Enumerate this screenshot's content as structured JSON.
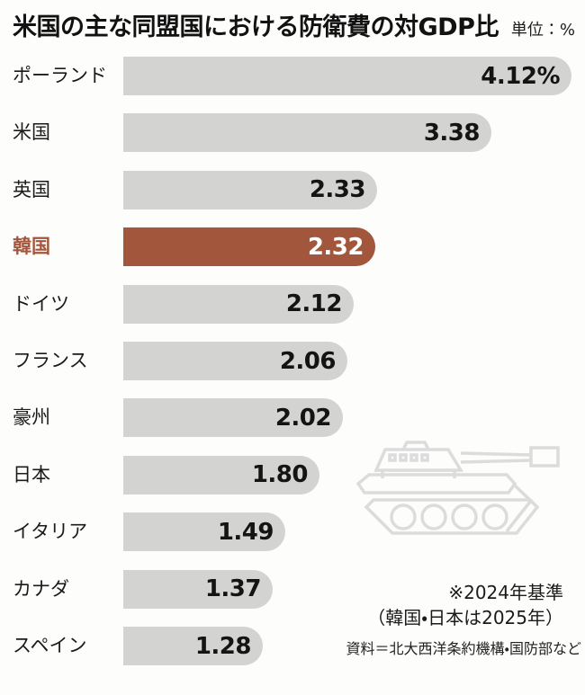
{
  "title": "米国の主な同盟国における防衛費の対GDP比",
  "unit_label": "単位：%",
  "notes": {
    "line1": "※2024年基準",
    "line2": "（韓国・日本は2025年）",
    "source": "資料＝北大西洋条約機構・国防部など"
  },
  "icons": {
    "tank": "tank-line-art-icon"
  },
  "colors": {
    "background": "#fdfdfc",
    "bar_default": "#d3d3d2",
    "bar_highlight": "#a2563c",
    "value_default": "#141414",
    "value_highlight": "#ffffff",
    "label_default": "#1b1b1b",
    "label_highlight": "#a2563c",
    "tank_stroke": "#dcdcdc"
  },
  "chart_data": {
    "type": "bar",
    "orientation": "horizontal",
    "title": "米国の主な同盟国における防衛費の対GDP比",
    "unit": "%",
    "categories": [
      "ポーランド",
      "米国",
      "英国",
      "韓国",
      "ドイツ",
      "フランス",
      "豪州",
      "日本",
      "イタリア",
      "カナダ",
      "スペイン"
    ],
    "values": [
      4.12,
      3.38,
      2.33,
      2.32,
      2.12,
      2.06,
      2.02,
      1.8,
      1.49,
      1.37,
      1.28
    ],
    "value_labels": [
      "4.12%",
      "3.38",
      "2.33",
      "2.32",
      "2.12",
      "2.06",
      "2.02",
      "1.80",
      "1.49",
      "1.37",
      "1.28"
    ],
    "highlight_index": 3,
    "highlight_category": "韓国",
    "xlim": [
      0,
      4.12
    ],
    "grid": false,
    "legend": false,
    "value_label_position": "inside-end"
  }
}
